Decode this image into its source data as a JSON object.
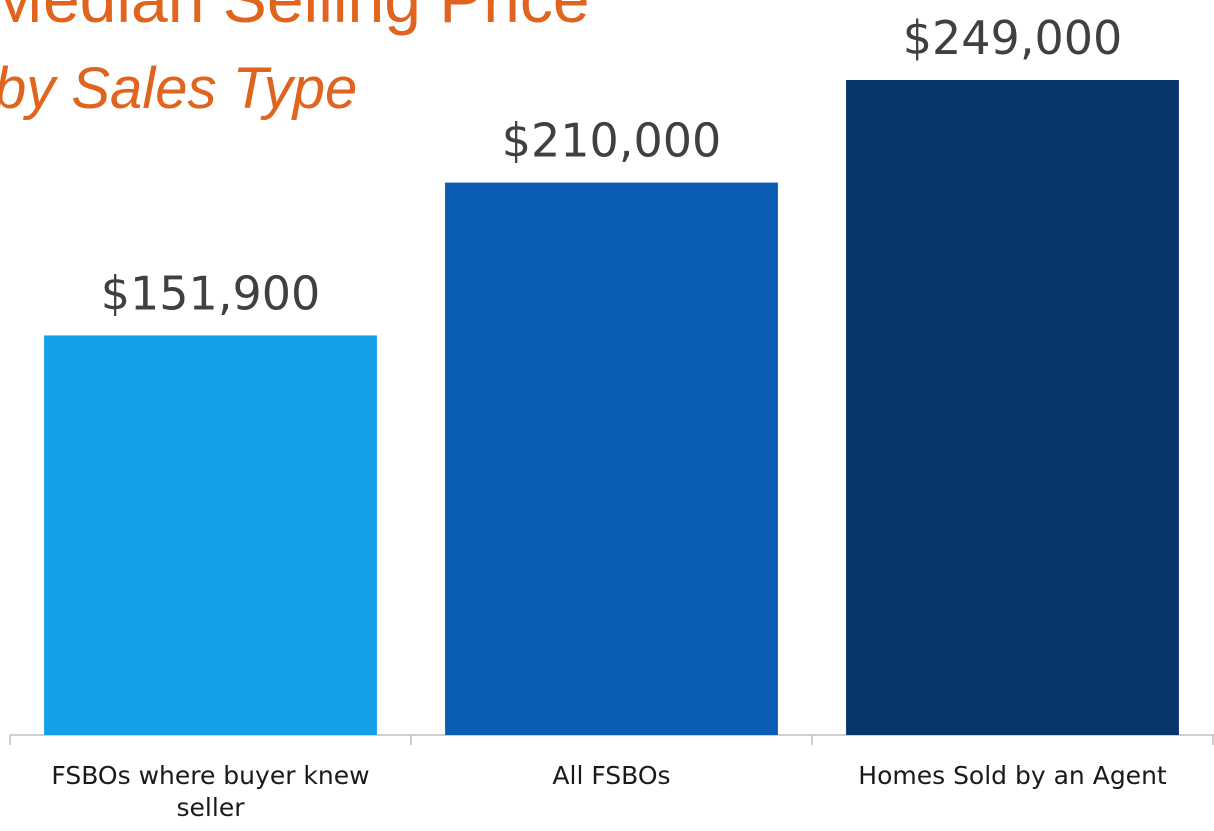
{
  "chart_data": {
    "type": "bar",
    "title": "Median Selling Price",
    "subtitle": "by Sales Type",
    "categories": [
      "FSBOs where buyer knew seller",
      "All FSBOs",
      "Homes Sold by an Agent"
    ],
    "values": [
      151900,
      210000,
      249000
    ],
    "value_labels": [
      "$151,900",
      "$210,000",
      "$249,000"
    ],
    "colors": [
      "#14a0e8",
      "#0a5cb5",
      "#08366a"
    ]
  }
}
